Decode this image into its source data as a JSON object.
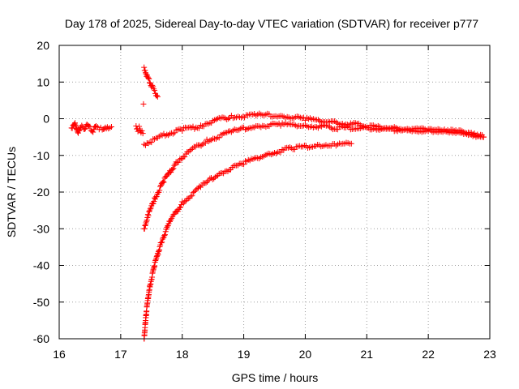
{
  "chart_data": {
    "type": "scatter",
    "title": "Day 178 of 2025, Sidereal Day-to-day VTEC variation (SDTVAR) for receiver p777",
    "xlabel": "GPS time / hours",
    "ylabel": "SDTVAR / TECUs",
    "xlim": [
      16,
      23
    ],
    "ylim": [
      -60,
      20
    ],
    "xticks": [
      16,
      17,
      18,
      19,
      20,
      21,
      22,
      23
    ],
    "yticks": [
      -60,
      -50,
      -40,
      -30,
      -20,
      -10,
      0,
      10,
      20
    ],
    "xtick_labels": [
      "16",
      "17",
      "18",
      "19",
      "20",
      "21",
      "22",
      "23"
    ],
    "ytick_labels": [
      "-60",
      "-50",
      "-40",
      "-30",
      "-20",
      "-10",
      "0",
      "10",
      "20"
    ],
    "grid": true,
    "marker": "+",
    "color": "#ff0000",
    "series": [
      {
        "name": "early-cluster",
        "points": [
          [
            16.2,
            -2.5
          ],
          [
            16.25,
            -1.0
          ],
          [
            16.3,
            -4.0
          ],
          [
            16.35,
            -2.0
          ],
          [
            16.4,
            -3.0
          ],
          [
            16.45,
            -1.5
          ],
          [
            16.5,
            -2.5
          ],
          [
            16.55,
            -3.5
          ],
          [
            16.6,
            -2.0
          ],
          [
            16.65,
            -2.5
          ],
          [
            16.7,
            -3.0
          ],
          [
            16.75,
            -2.0
          ],
          [
            16.8,
            -2.8
          ],
          [
            16.85,
            -2.2
          ]
        ]
      },
      {
        "name": "short-segment-17",
        "points": [
          [
            17.25,
            -2.0
          ],
          [
            17.28,
            -3.0
          ],
          [
            17.3,
            -2.5
          ],
          [
            17.33,
            -3.5
          ],
          [
            17.36,
            -4.0
          ]
        ]
      },
      {
        "name": "descending-arc",
        "points": [
          [
            17.38,
            14.0
          ],
          [
            17.42,
            12.0
          ],
          [
            17.46,
            10.5
          ],
          [
            17.5,
            9.0
          ],
          [
            17.55,
            7.5
          ],
          [
            17.6,
            6.0
          ]
        ]
      },
      {
        "name": "isolated-point",
        "points": [
          [
            17.37,
            4.0
          ]
        ]
      },
      {
        "name": "upper-arc",
        "points": [
          [
            17.38,
            -7.0
          ],
          [
            17.5,
            -6.0
          ],
          [
            17.7,
            -4.5
          ],
          [
            18.0,
            -3.0
          ],
          [
            18.3,
            -2.0
          ],
          [
            18.5,
            -0.5
          ],
          [
            18.8,
            0.5
          ],
          [
            19.2,
            1.0
          ],
          [
            19.6,
            0.8
          ],
          [
            20.0,
            0.0
          ],
          [
            20.5,
            -1.0
          ],
          [
            21.0,
            -2.0
          ],
          [
            21.5,
            -2.8
          ],
          [
            22.0,
            -3.0
          ],
          [
            22.5,
            -3.5
          ],
          [
            22.9,
            -5.0
          ]
        ]
      },
      {
        "name": "middle-arc",
        "points": [
          [
            17.38,
            -30.0
          ],
          [
            17.45,
            -26.0
          ],
          [
            17.55,
            -22.0
          ],
          [
            17.7,
            -17.0
          ],
          [
            17.9,
            -12.0
          ],
          [
            18.1,
            -9.0
          ],
          [
            18.4,
            -6.0
          ],
          [
            18.8,
            -3.5
          ],
          [
            19.2,
            -2.0
          ],
          [
            19.6,
            -1.5
          ],
          [
            20.0,
            -1.8
          ],
          [
            20.5,
            -2.5
          ],
          [
            21.0,
            -2.5
          ],
          [
            21.5,
            -3.0
          ],
          [
            22.0,
            -3.2
          ],
          [
            22.5,
            -3.5
          ],
          [
            22.9,
            -5.0
          ]
        ]
      },
      {
        "name": "lower-arc",
        "points": [
          [
            17.38,
            -60.0
          ],
          [
            17.42,
            -52.0
          ],
          [
            17.47,
            -46.0
          ],
          [
            17.55,
            -40.0
          ],
          [
            17.65,
            -34.0
          ],
          [
            17.8,
            -28.0
          ],
          [
            18.0,
            -23.0
          ],
          [
            18.3,
            -18.5
          ],
          [
            18.6,
            -15.0
          ],
          [
            19.0,
            -12.0
          ],
          [
            19.4,
            -9.5
          ],
          [
            19.8,
            -8.0
          ],
          [
            20.2,
            -7.2
          ],
          [
            20.5,
            -7.0
          ],
          [
            20.75,
            -6.8
          ]
        ]
      }
    ]
  }
}
